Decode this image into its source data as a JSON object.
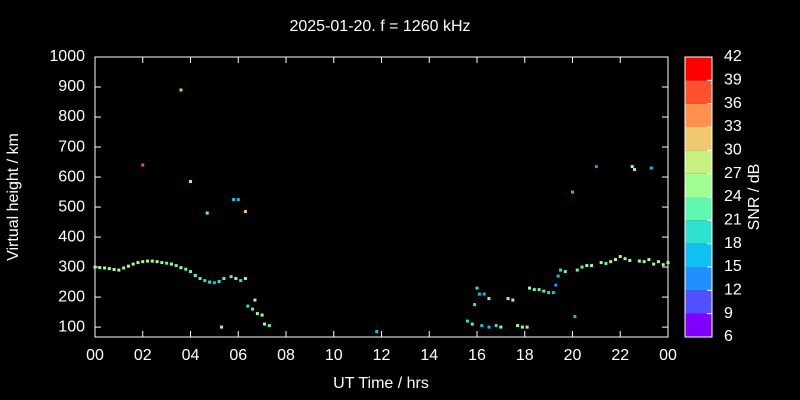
{
  "chart_data": {
    "type": "scatter",
    "title": "2025-01-20. f = 1260 kHz",
    "x_label": "UT Time / hrs",
    "y_label": "Virtual height / km",
    "colorbar_label": "SNR / dB",
    "x": [
      0,
      0.2,
      0.4,
      0.6,
      0.8,
      1.0,
      1.2,
      1.4,
      1.6,
      1.8,
      2.0,
      2.2,
      2.4,
      2.6,
      2.8,
      3.0,
      3.2,
      3.4,
      3.6,
      3.8,
      4.0,
      4.2,
      4.4,
      4.6,
      4.8,
      5.0,
      5.2,
      5.4,
      5.7,
      5.9,
      6.1,
      6.3,
      6.4,
      6.6,
      6.7,
      6.8,
      7.0,
      7.1,
      7.3,
      2.0,
      3.6,
      4.0,
      4.7,
      5.8,
      6.0,
      6.3,
      5.3,
      11.8,
      15.6,
      15.8,
      15.9,
      16.0,
      16.1,
      16.3,
      16.5,
      16.2,
      16.5,
      16.8,
      17.0,
      17.3,
      17.5,
      17.7,
      17.9,
      18.1,
      18.2,
      18.4,
      18.6,
      18.8,
      19.0,
      19.2,
      19.3,
      19.4,
      19.5,
      19.7,
      20.0,
      20.1,
      20.2,
      20.4,
      20.6,
      20.8,
      21.0,
      21.2,
      21.4,
      21.6,
      21.8,
      22.0,
      22.2,
      22.4,
      22.5,
      22.6,
      22.8,
      23.0,
      23.2,
      23.3,
      23.4,
      23.6,
      23.8,
      24.0
    ],
    "values": [
      300,
      298,
      297,
      295,
      292,
      290,
      297,
      303,
      310,
      315,
      318,
      320,
      320,
      318,
      315,
      313,
      310,
      305,
      298,
      293,
      285,
      272,
      262,
      255,
      250,
      248,
      252,
      262,
      268,
      262,
      255,
      262,
      170,
      160,
      190,
      145,
      140,
      110,
      105,
      640,
      890,
      585,
      480,
      525,
      525,
      485,
      100,
      85,
      120,
      110,
      175,
      230,
      210,
      210,
      195,
      105,
      100,
      105,
      100,
      195,
      190,
      105,
      100,
      100,
      230,
      225,
      225,
      220,
      215,
      215,
      240,
      270,
      290,
      285,
      550,
      135,
      290,
      300,
      305,
      305,
      635,
      315,
      312,
      318,
      325,
      335,
      328,
      322,
      635,
      625,
      320,
      318,
      325,
      630,
      310,
      318,
      308,
      315
    ],
    "snr": [
      25,
      25,
      24,
      25,
      25,
      24,
      25,
      25,
      26,
      25,
      25,
      24,
      25,
      24,
      25,
      22,
      25,
      22,
      25,
      22,
      22,
      22,
      22,
      19,
      19,
      16,
      19,
      22,
      22,
      25,
      19,
      25,
      19,
      22,
      28,
      25,
      28,
      25,
      22,
      37,
      21,
      24,
      23,
      17,
      17,
      32,
      27,
      15,
      19,
      22,
      18,
      19,
      16,
      16,
      25,
      16,
      16,
      19,
      25,
      25,
      25,
      25,
      25,
      28,
      25,
      22,
      22,
      22,
      19,
      16,
      13,
      16,
      19,
      22,
      17,
      17,
      22,
      22,
      25,
      25,
      12,
      25,
      22,
      25,
      28,
      28,
      25,
      25,
      25,
      25,
      25,
      28,
      25,
      15,
      25,
      25,
      25,
      25
    ],
    "xlim": [
      0,
      24
    ],
    "xticks": [
      {
        "value": 0,
        "label": "00"
      },
      {
        "value": 2,
        "label": "02"
      },
      {
        "value": 4,
        "label": "04"
      },
      {
        "value": 6,
        "label": "06"
      },
      {
        "value": 8,
        "label": "08"
      },
      10,
      12,
      14,
      16,
      18,
      20,
      22,
      {
        "value": 24,
        "label": "00"
      }
    ],
    "ylim": [
      67,
      1000
    ],
    "yticks": [
      100,
      200,
      300,
      400,
      500,
      600,
      700,
      800,
      900,
      1000
    ],
    "clim": [
      6,
      42
    ],
    "cticks": [
      6,
      9,
      12,
      15,
      18,
      21,
      24,
      27,
      30,
      33,
      36,
      39,
      42
    ],
    "colors": [
      "#8000ff",
      "#5050ff",
      "#2090ff",
      "#10c0f0",
      "#30e0d0",
      "#60f8b0",
      "#a0ff90",
      "#c8f080",
      "#f0c870",
      "#ff9050",
      "#ff5030",
      "#ff0000"
    ]
  }
}
